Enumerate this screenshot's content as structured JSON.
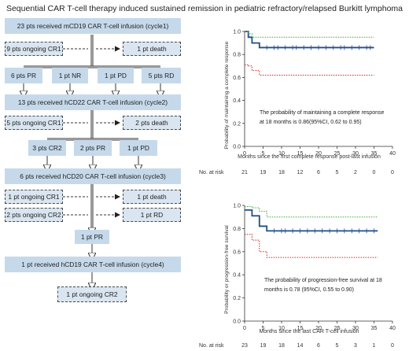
{
  "title": "Sequential CAR T-cell therapy induced sustained remission in pediatric refractory/relapsed Burkitt lymphoma",
  "flow": {
    "cycle1": "23 pts received mCD19 CAR T-cell infusion (cycle1)",
    "c1_cr1": "9 pts ongoing CR1",
    "c1_death": "1 pt death",
    "c1_pr": "6 pts PR",
    "c1_nr": "1 pt NR",
    "c1_pd": "1 pt PD",
    "c1_rd": "5 pts RD",
    "cycle2": "13 pts received hCD22 CAR T-cell infusion (cycle2)",
    "c2_cr1": "5 pts ongoing CR1",
    "c2_death": "2 pts death",
    "c2_cr2": "3 pts CR2",
    "c2_pr": "2 pts PR",
    "c2_pd": "1 pt PD",
    "cycle3": "6 pts received hCD20 CAR T-cell infusion (cycle3)",
    "c3_cr1": "1 pt ongoing CR1",
    "c3_death": "1 pt death",
    "c3_cr2": "2 pts ongoing CR2",
    "c3_rd": "1 pt RD",
    "c3_pr": "1 pt PR",
    "cycle4": "1 pt received hCD19 CAR T-cell infusion (cycle4)",
    "c4_cr2": "1 pt ongoing CR2"
  },
  "chart_data": [
    {
      "type": "line",
      "ylabel": "Probability of maintaining a complete response",
      "xlabel": "Months since the first complete response post-last infusion",
      "xticks": [
        0,
        5,
        10,
        15,
        20,
        25,
        30,
        35,
        40
      ],
      "yticks": [
        "0.0",
        "0.2",
        "0.4",
        "0.6",
        "0.8",
        "1.0"
      ],
      "xlim": [
        0,
        40
      ],
      "ylim": [
        0,
        1
      ],
      "annotation_line1": "The probability of maintaining a complete response",
      "annotation_line2": "at 18 months is 0.86(95%CI, 0.62 to 0.95)",
      "risk_label": "No. at risk",
      "risk_values": [
        "21",
        "19",
        "18",
        "12",
        "6",
        "5",
        "2",
        "0",
        "0"
      ],
      "series": [
        {
          "style": "estimate",
          "color": "#1f4e8c",
          "x": [
            0,
            1,
            1,
            2,
            2,
            4,
            4,
            35
          ],
          "y": [
            1.0,
            1.0,
            0.95,
            0.95,
            0.9,
            0.9,
            0.86,
            0.86
          ],
          "censor_x": [
            6,
            8,
            9,
            11,
            13,
            14,
            16,
            18,
            20,
            22,
            24,
            26,
            27,
            29,
            31,
            33,
            34
          ]
        },
        {
          "style": "upper",
          "color": "#3aa83a",
          "x": [
            0,
            1,
            1,
            2,
            2,
            35
          ],
          "y": [
            1.0,
            1.0,
            0.98,
            0.98,
            0.95,
            0.95
          ]
        },
        {
          "style": "lower",
          "color": "#d62020",
          "x": [
            0,
            1,
            1,
            2,
            2,
            4,
            4,
            35
          ],
          "y": [
            0.71,
            0.71,
            0.7,
            0.7,
            0.66,
            0.66,
            0.62,
            0.62
          ]
        }
      ]
    },
    {
      "type": "line",
      "ylabel": "Probability or progression-free survival",
      "xlabel": "Months since the last CAR T-cell infusion",
      "xticks": [
        0,
        5,
        10,
        15,
        20,
        25,
        30,
        35,
        40
      ],
      "yticks": [
        "0.0",
        "0.2",
        "0.4",
        "0.6",
        "0.8",
        "1.0"
      ],
      "xlim": [
        0,
        40
      ],
      "ylim": [
        0,
        1
      ],
      "annotation_line1": "The probability of progression-free survival at 18",
      "annotation_line2": "months is 0.78 (95%CI, 0.55 to 0.90)",
      "risk_label": "No. at risk",
      "risk_values": [
        "23",
        "19",
        "18",
        "14",
        "6",
        "5",
        "3",
        "1",
        "0"
      ],
      "series": [
        {
          "style": "estimate",
          "color": "#1f4e8c",
          "x": [
            0,
            2,
            2,
            4,
            4,
            6,
            6,
            36
          ],
          "y": [
            0.96,
            0.96,
            0.91,
            0.91,
            0.82,
            0.82,
            0.78,
            0.78
          ],
          "censor_x": [
            8,
            10,
            11,
            13,
            15,
            17,
            19,
            21,
            23,
            25,
            27,
            29,
            31,
            33,
            35
          ]
        },
        {
          "style": "upper",
          "color": "#3aa83a",
          "x": [
            0,
            2,
            2,
            4,
            4,
            6,
            6,
            36
          ],
          "y": [
            0.99,
            0.99,
            0.98,
            0.98,
            0.95,
            0.95,
            0.9,
            0.9
          ]
        },
        {
          "style": "lower",
          "color": "#d62020",
          "x": [
            0,
            2,
            2,
            4,
            4,
            6,
            6,
            36
          ],
          "y": [
            0.75,
            0.75,
            0.7,
            0.7,
            0.6,
            0.6,
            0.55,
            0.55
          ]
        }
      ]
    }
  ]
}
